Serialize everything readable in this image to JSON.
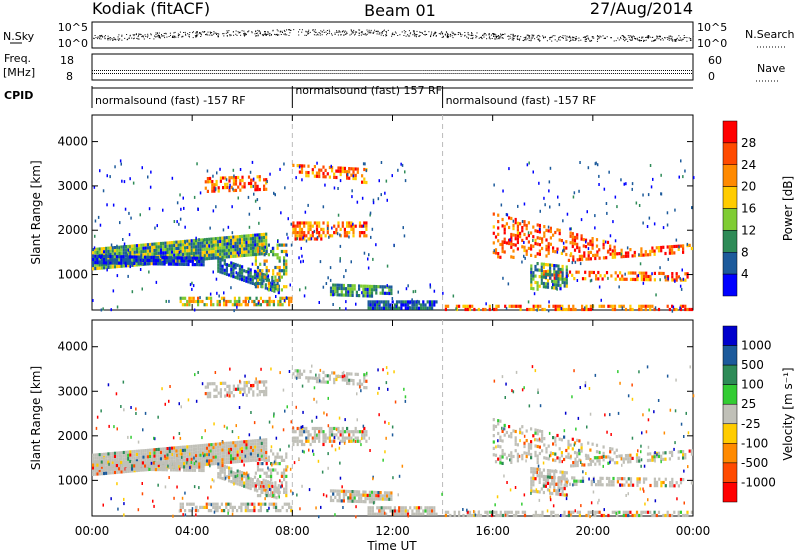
{
  "header": {
    "station": "Kodiak (fitACF)",
    "beam": "Beam 01",
    "date": "27/Aug/2014"
  },
  "strip1": {
    "left_label": "N.Sky",
    "right_label": "N.Search",
    "left_ticks": [
      "10^5",
      "10^0"
    ],
    "right_ticks": [
      "10^5",
      "10^0"
    ]
  },
  "strip2": {
    "left_label_1": "Freq.",
    "left_label_2": "[MHz]",
    "right_label": "Nave",
    "left_ticks": [
      "18",
      "8"
    ],
    "right_ticks": [
      "60",
      "0"
    ]
  },
  "cpid": {
    "label": "CPID",
    "segments": [
      {
        "text": "normalsound (fast) -157 RF",
        "start_hour": 0
      },
      {
        "text": "normalsound (fast) 157 RF",
        "start_hour": 8
      },
      {
        "text": "normalsound (fast) -157 RF",
        "start_hour": 14
      }
    ]
  },
  "chart_data": [
    {
      "type": "heatmap",
      "quantity": "Power",
      "ylabel": "Slant Range [km]",
      "xlabel": "",
      "xlim": [
        0,
        24
      ],
      "ylim": [
        200,
        4600
      ],
      "yticks": [
        1000,
        2000,
        3000,
        4000
      ],
      "colorbar": {
        "label": "Power [dB]",
        "ticks": [
          "28",
          "24",
          "20",
          "16",
          "12",
          "8",
          "4"
        ],
        "colors": [
          "#ff0000",
          "#ff4a00",
          "#ff8a00",
          "#ffcc00",
          "#7fcc33",
          "#2e8b57",
          "#1c5a9b",
          "#0000ff"
        ]
      }
    },
    {
      "type": "heatmap",
      "quantity": "Velocity",
      "ylabel": "Slant Range [km]",
      "xlabel": "Time UT",
      "xlim": [
        0,
        24
      ],
      "ylim": [
        200,
        4600
      ],
      "yticks": [
        1000,
        2000,
        3000,
        4000
      ],
      "xticks": [
        "00:00",
        "04:00",
        "08:00",
        "12:00",
        "16:00",
        "20:00",
        "00:00"
      ],
      "colorbar": {
        "label": "Velocity [m s⁻¹]",
        "ticks": [
          "1000",
          "500",
          "100",
          "25",
          "-25",
          "-100",
          "-500",
          "-1000"
        ],
        "colors": [
          "#0000cc",
          "#1c5a9b",
          "#2e8b57",
          "#33cc33",
          "#c0c0b8",
          "#ffcc00",
          "#ff8a00",
          "#ff4a00",
          "#ff0000"
        ]
      }
    }
  ]
}
